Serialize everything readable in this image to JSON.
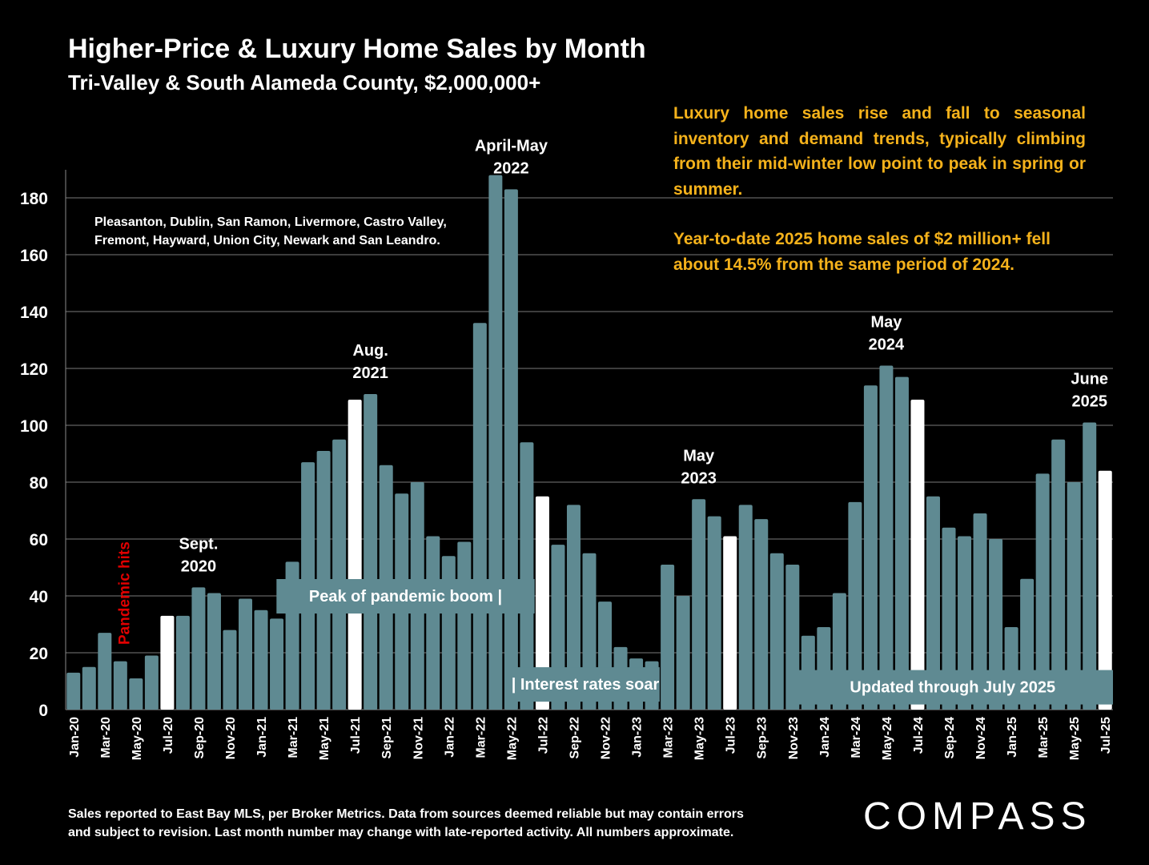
{
  "chart_data": {
    "type": "bar",
    "title": "Higher-Price & Luxury Home Sales by Month",
    "subtitle": "Tri-Valley & South Alameda County, $2,000,000+",
    "xlabel": "",
    "ylabel": "",
    "ylim": [
      0,
      190
    ],
    "yticks": [
      0,
      20,
      40,
      60,
      80,
      100,
      120,
      140,
      160,
      180
    ],
    "grid": true,
    "categories": [
      "Jan-20",
      "Feb-20",
      "Mar-20",
      "Apr-20",
      "May-20",
      "Jun-20",
      "Jul-20",
      "Aug-20",
      "Sep-20",
      "Oct-20",
      "Nov-20",
      "Dec-20",
      "Jan-21",
      "Feb-21",
      "Mar-21",
      "Apr-21",
      "May-21",
      "Jun-21",
      "Jul-21",
      "Aug-21",
      "Sep-21",
      "Oct-21",
      "Nov-21",
      "Dec-21",
      "Jan-22",
      "Feb-22",
      "Mar-22",
      "Apr-22",
      "May-22",
      "Jun-22",
      "Jul-22",
      "Aug-22",
      "Sep-22",
      "Oct-22",
      "Nov-22",
      "Dec-22",
      "Jan-23",
      "Feb-23",
      "Mar-23",
      "Apr-23",
      "May-23",
      "Jun-23",
      "Jul-23",
      "Aug-23",
      "Sep-23",
      "Oct-23",
      "Nov-23",
      "Dec-23",
      "Jan-24",
      "Feb-24",
      "Mar-24",
      "Apr-24",
      "May-24",
      "Jun-24",
      "Jul-24",
      "Aug-24",
      "Sep-24",
      "Oct-24",
      "Nov-24",
      "Dec-24",
      "Jan-25",
      "Feb-25",
      "Mar-25",
      "Apr-25",
      "May-25",
      "Jun-25",
      "Jul-25"
    ],
    "xtick_labels": [
      "Jan-20",
      "",
      "Mar-20",
      "",
      "May-20",
      "",
      "Jul-20",
      "",
      "Sep-20",
      "",
      "Nov-20",
      "",
      "Jan-21",
      "",
      "Mar-21",
      "",
      "May-21",
      "",
      "Jul-21",
      "",
      "Sep-21",
      "",
      "Nov-21",
      "",
      "Jan-22",
      "",
      "Mar-22",
      "",
      "May-22",
      "",
      "Jul-22",
      "",
      "Sep-22",
      "",
      "Nov-22",
      "",
      "Jan-23",
      "",
      "Mar-23",
      "",
      "May-23",
      "",
      "Jul-23",
      "",
      "Sep-23",
      "",
      "Nov-23",
      "",
      "Jan-24",
      "",
      "Mar-24",
      "",
      "May-24",
      "",
      "Jul-24",
      "",
      "Sep-24",
      "",
      "Nov-24",
      "",
      "Jan-25",
      "",
      "Mar-25",
      "",
      "May-25",
      "",
      "Jul-25"
    ],
    "values": [
      13,
      15,
      27,
      17,
      11,
      19,
      33,
      33,
      43,
      41,
      28,
      39,
      35,
      32,
      52,
      87,
      91,
      95,
      109,
      111,
      86,
      76,
      80,
      61,
      54,
      59,
      136,
      188,
      183,
      94,
      75,
      58,
      72,
      55,
      38,
      22,
      18,
      17,
      51,
      40,
      74,
      68,
      61,
      72,
      67,
      55,
      51,
      26,
      29,
      41,
      73,
      114,
      121,
      117,
      109,
      75,
      64,
      61,
      69,
      60,
      29,
      46,
      83,
      95,
      80,
      101,
      84
    ],
    "highlighted_months": [
      "Jul-20",
      "Jul-21",
      "Jul-22",
      "Jul-23",
      "Jul-24",
      "Jul-25"
    ],
    "bar_color": "#5f8a92",
    "highlight_color": "#ffffff",
    "annotations": [
      {
        "month": "Apr-20",
        "text": "Pandemic hits",
        "color": "#e00000",
        "rotated": true
      },
      {
        "month": "Sep-20",
        "lines": [
          "Sept.",
          "2020"
        ]
      },
      {
        "month": "Aug-21",
        "lines": [
          "Aug.",
          "2021"
        ]
      },
      {
        "month": "May-22",
        "lines": [
          "April-May",
          "2022"
        ]
      },
      {
        "month": "May-23",
        "lines": [
          "May",
          "2023"
        ]
      },
      {
        "month": "May-24",
        "lines": [
          "May",
          "2024"
        ]
      },
      {
        "month": "Jun-25",
        "lines": [
          "June",
          "2025"
        ]
      }
    ],
    "callouts": [
      {
        "text": "Peak of pandemic boom |",
        "from": "Mar-21",
        "to": "Jun-22",
        "level": 40
      },
      {
        "text": "| Interest rates soar",
        "from": "Jun-22",
        "to": "Feb-23",
        "level": 9
      },
      {
        "text": "Updated through July 2025",
        "from": "Dec-23",
        "to": "Jul-25",
        "level": 8
      }
    ]
  },
  "insight": {
    "p1": "Luxury home sales rise and fall to seasonal inventory and demand trends, typically climbing from their mid-winter low point to peak in spring or summer.",
    "p2": "Year-to-date 2025 home sales of $2 million+ fell about 14.5% from the same period of 2024."
  },
  "cities": {
    "line1": "Pleasanton, Dublin, San Ramon, Livermore, Castro Valley,",
    "line2": "Fremont, Hayward, Union City, Newark and San Leandro."
  },
  "footer": {
    "line1": "Sales reported to East Bay MLS, per Broker Metrics. Data from sources deemed reliable but may contain errors",
    "line2": "and subject to revision. Last month number may change with late-reported activity. All numbers approximate."
  },
  "brand": {
    "logo": "COMPASS"
  }
}
